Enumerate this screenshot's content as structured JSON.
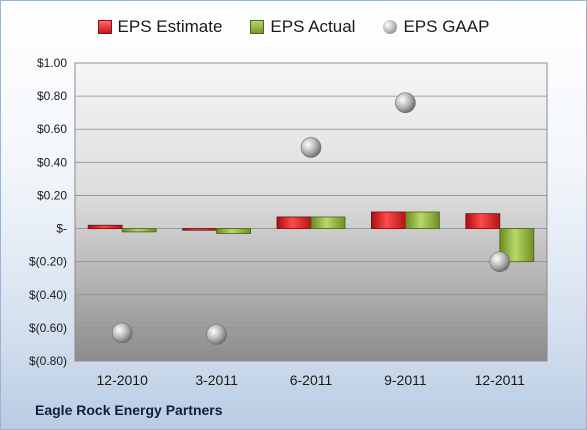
{
  "chart_data": {
    "type": "bar",
    "categories": [
      "12-2010",
      "3-2011",
      "6-2011",
      "9-2011",
      "12-2011"
    ],
    "series": [
      {
        "name": "EPS Estimate",
        "kind": "bar",
        "color": "#d42a2a",
        "values": [
          0.02,
          -0.01,
          0.07,
          0.1,
          0.09
        ]
      },
      {
        "name": "EPS Actual",
        "kind": "bar",
        "color": "#8fb23c",
        "values": [
          -0.02,
          -0.03,
          0.07,
          0.1,
          -0.2
        ]
      },
      {
        "name": "EPS GAAP",
        "kind": "marker",
        "color": "#a8a8a8",
        "values": [
          -0.63,
          -0.64,
          0.49,
          0.76,
          -0.2
        ]
      }
    ],
    "y_ticks": [
      "$1.00",
      "$0.80",
      "$0.60",
      "$0.40",
      "$0.20",
      "$-",
      "$(0.20)",
      "$(0.40)",
      "$(0.60)",
      "$(0.80)"
    ],
    "ylim": [
      -0.8,
      1.0
    ],
    "grid": true,
    "legend_position": "top"
  },
  "footer": {
    "company": "Eagle Rock Energy Partners"
  }
}
